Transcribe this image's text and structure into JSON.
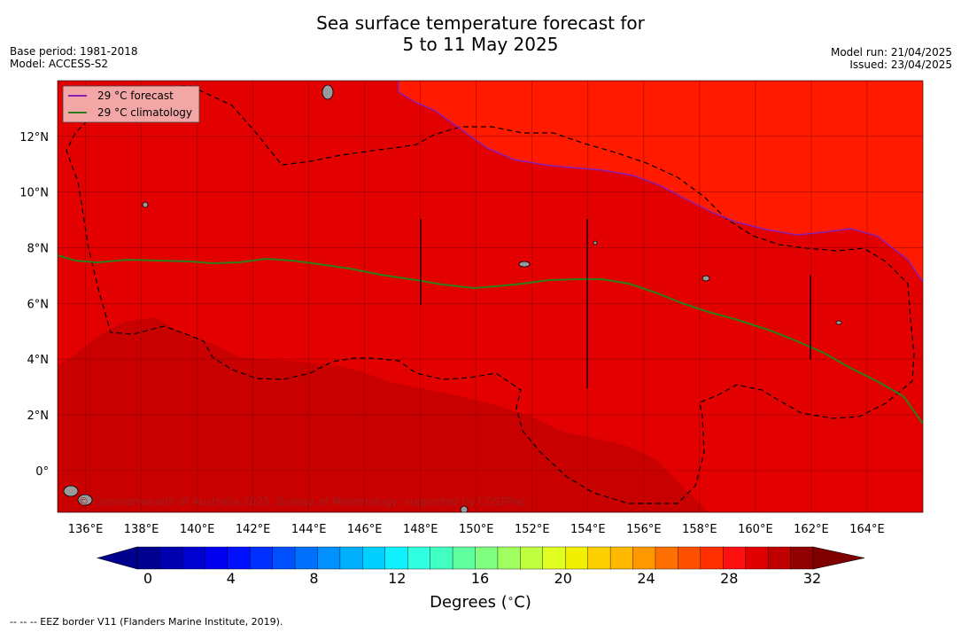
{
  "header": {
    "title_line1": "Sea surface temperature forecast for",
    "title_line2": "5 to 11 May 2025",
    "base_period": "Base period: 1981-2018",
    "model": "Model: ACCESS-S2",
    "model_run": "Model run: 21/04/2025",
    "issued": "Issued: 23/04/2025"
  },
  "legend": [
    {
      "label": "29 °C  forecast",
      "color": "#8b1fb0"
    },
    {
      "label": "29 °C  climatology",
      "color": "#2e7d1f"
    }
  ],
  "map": {
    "lon_range": [
      135,
      166
    ],
    "lat_range": [
      -1.5,
      14
    ],
    "x_ticks": [
      "136°E",
      "138°E",
      "140°E",
      "142°E",
      "144°E",
      "146°E",
      "148°E",
      "150°E",
      "152°E",
      "154°E",
      "156°E",
      "158°E",
      "160°E",
      "162°E",
      "164°E"
    ],
    "x_tick_values": [
      136,
      138,
      140,
      142,
      144,
      146,
      148,
      150,
      152,
      154,
      156,
      158,
      160,
      162,
      164
    ],
    "y_ticks": [
      "0°",
      "2°N",
      "4°N",
      "6°N",
      "8°N",
      "10°N",
      "12°N"
    ],
    "y_tick_values": [
      0,
      2,
      4,
      6,
      8,
      10,
      12
    ],
    "watermark": "© Commonwealth of Australia 2025, Bureau of Meteorology, supported by COSPPac",
    "colors": {
      "bg": "#e30000",
      "warm": "#ff1a00",
      "cool": "#c90000"
    }
  },
  "colorbar": {
    "label": "Degrees (",
    "label_symbol": "∘",
    "label_unit": "C)",
    "tick_labels": [
      "0",
      "4",
      "8",
      "12",
      "16",
      "20",
      "24",
      "28",
      "32"
    ],
    "tick_values": [
      0,
      4,
      8,
      12,
      16,
      20,
      24,
      28,
      32
    ],
    "range": [
      0,
      32
    ],
    "colors": [
      "#00008f",
      "#0000b0",
      "#0000d0",
      "#0000ef",
      "#0010ff",
      "#0030ff",
      "#0050ff",
      "#0070ff",
      "#0090ff",
      "#00b0ff",
      "#00d0ff",
      "#10f0ff",
      "#30ffe0",
      "#40ffc0",
      "#60ffa0",
      "#80ff80",
      "#a0ff60",
      "#c0ff40",
      "#e0ff20",
      "#f0f000",
      "#ffd000",
      "#ffb800",
      "#ff9800",
      "#ff7000",
      "#ff5000",
      "#ff3000",
      "#ff1010",
      "#e00000",
      "#c00000",
      "#900000"
    ],
    "low_color": "#00008f",
    "high_color": "#800000"
  },
  "footnote": "--  --  -- EEZ border V11 (Flanders Marine Institute, 2019)."
}
